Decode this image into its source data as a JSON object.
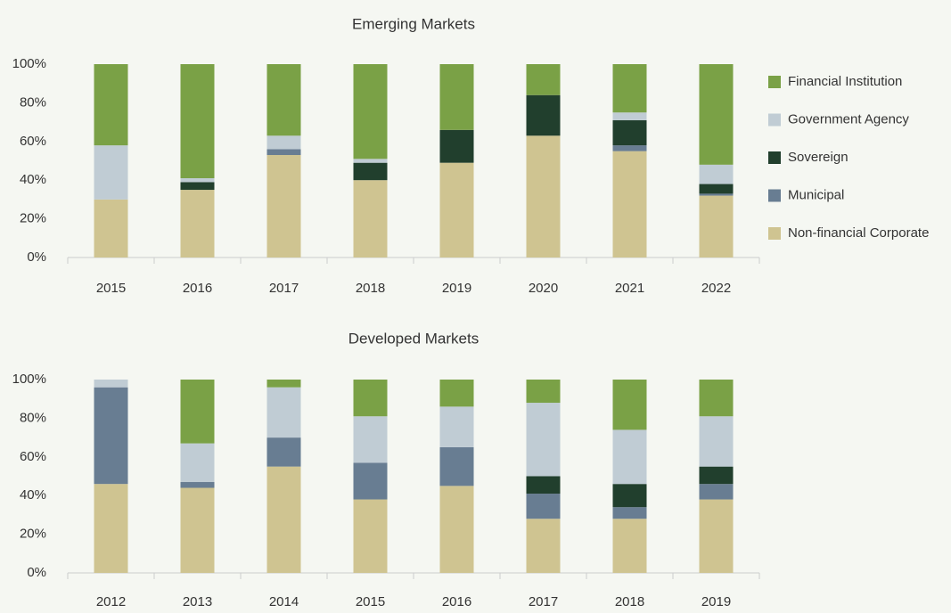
{
  "chart_data": [
    {
      "type": "stacked_bar",
      "title": "Emerging Markets",
      "categories": [
        "2015",
        "2016",
        "2017",
        "2018",
        "2019",
        "2020",
        "2021",
        "2022"
      ],
      "series": [
        {
          "name": "Non-financial Corporate",
          "color": "#cfc491",
          "values": [
            30,
            35,
            53,
            40,
            49,
            63,
            55,
            32
          ]
        },
        {
          "name": "Municipal",
          "color": "#687d92",
          "values": [
            0,
            0,
            3,
            0,
            0,
            0,
            3,
            1
          ]
        },
        {
          "name": "Sovereign",
          "color": "#213f2d",
          "values": [
            0,
            4,
            0,
            9,
            17,
            21,
            13,
            5
          ]
        },
        {
          "name": "Government Agency",
          "color": "#c0ccd4",
          "values": [
            28,
            2,
            7,
            2,
            0,
            0,
            4,
            10
          ]
        },
        {
          "name": "Financial Institution",
          "color": "#7aa146",
          "values": [
            42,
            59,
            37,
            49,
            34,
            16,
            25,
            52
          ]
        }
      ],
      "ylim": [
        0,
        100
      ],
      "yticks": [
        {
          "value": 0,
          "label": "0%"
        },
        {
          "value": 20,
          "label": "20%"
        },
        {
          "value": 40,
          "label": "40%"
        },
        {
          "value": 60,
          "label": "60%"
        },
        {
          "value": 80,
          "label": "80%"
        },
        {
          "value": 100,
          "label": "100%"
        }
      ],
      "legend": "right"
    },
    {
      "type": "stacked_bar",
      "title": "Developed Markets",
      "categories": [
        "2012",
        "2013",
        "2014",
        "2015",
        "2016",
        "2017",
        "2018",
        "2019"
      ],
      "series": [
        {
          "name": "Non-financial Corporate",
          "color": "#cfc491",
          "values": [
            46,
            44,
            55,
            38,
            45,
            28,
            28,
            38
          ]
        },
        {
          "name": "Municipal",
          "color": "#687d92",
          "values": [
            50,
            3,
            15,
            19,
            20,
            13,
            6,
            8
          ]
        },
        {
          "name": "Sovereign",
          "color": "#213f2d",
          "values": [
            0,
            0,
            0,
            0,
            0,
            9,
            12,
            9
          ]
        },
        {
          "name": "Government Agency",
          "color": "#c0ccd4",
          "values": [
            4,
            20,
            26,
            24,
            21,
            38,
            28,
            26
          ]
        },
        {
          "name": "Financial Institution",
          "color": "#7aa146",
          "values": [
            0,
            33,
            4,
            19,
            14,
            12,
            26,
            19
          ]
        }
      ],
      "ylim": [
        0,
        100
      ],
      "yticks": [
        {
          "value": 0,
          "label": "0%"
        },
        {
          "value": 20,
          "label": "20%"
        },
        {
          "value": 40,
          "label": "40%"
        },
        {
          "value": 60,
          "label": "60%"
        },
        {
          "value": 80,
          "label": "80%"
        },
        {
          "value": 100,
          "label": "100%"
        }
      ]
    }
  ]
}
